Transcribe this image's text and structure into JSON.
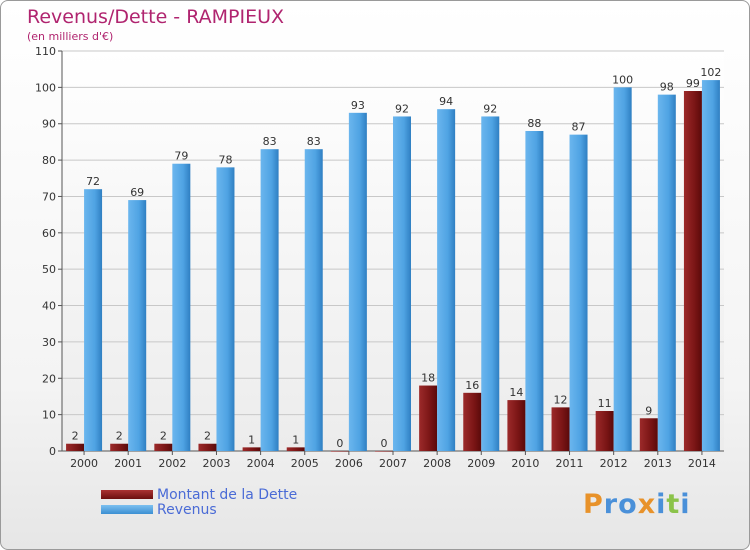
{
  "title": "Revenus/Dette - RAMPIEUX",
  "subtitle": "(en milliers d'€)",
  "legend": {
    "items": [
      {
        "label": "Montant de la Dette",
        "color": "#7a1515"
      },
      {
        "label": "Revenus",
        "color": "#4fa3e3"
      }
    ]
  },
  "logo": {
    "text": "Proxiti",
    "letters": [
      "P",
      "r",
      "o",
      "x",
      "i",
      "t",
      "i"
    ],
    "colors": [
      "#e8922a",
      "#4a90d9",
      "#4a90d9",
      "#e8922a",
      "#4a90d9",
      "#8bc34a",
      "#4a90d9"
    ]
  },
  "chart_data": {
    "type": "bar",
    "categories": [
      "2000",
      "2001",
      "2002",
      "2003",
      "2004",
      "2005",
      "2006",
      "2007",
      "2008",
      "2009",
      "2010",
      "2011",
      "2012",
      "2013",
      "2014"
    ],
    "series": [
      {
        "name": "Montant de la Dette",
        "color": "#7a1515",
        "values": [
          2,
          2,
          2,
          2,
          1,
          1,
          0,
          0,
          18,
          16,
          14,
          12,
          11,
          9,
          99
        ]
      },
      {
        "name": "Revenus",
        "color": "#4fa3e3",
        "values": [
          72,
          69,
          79,
          78,
          83,
          83,
          93,
          92,
          94,
          92,
          88,
          87,
          100,
          98,
          102
        ]
      }
    ],
    "yticks": [
      0,
      10,
      20,
      30,
      40,
      50,
      60,
      70,
      80,
      90,
      100,
      110
    ],
    "ylim": [
      0,
      110
    ],
    "grid": true,
    "legend_position": "bottom-left"
  }
}
